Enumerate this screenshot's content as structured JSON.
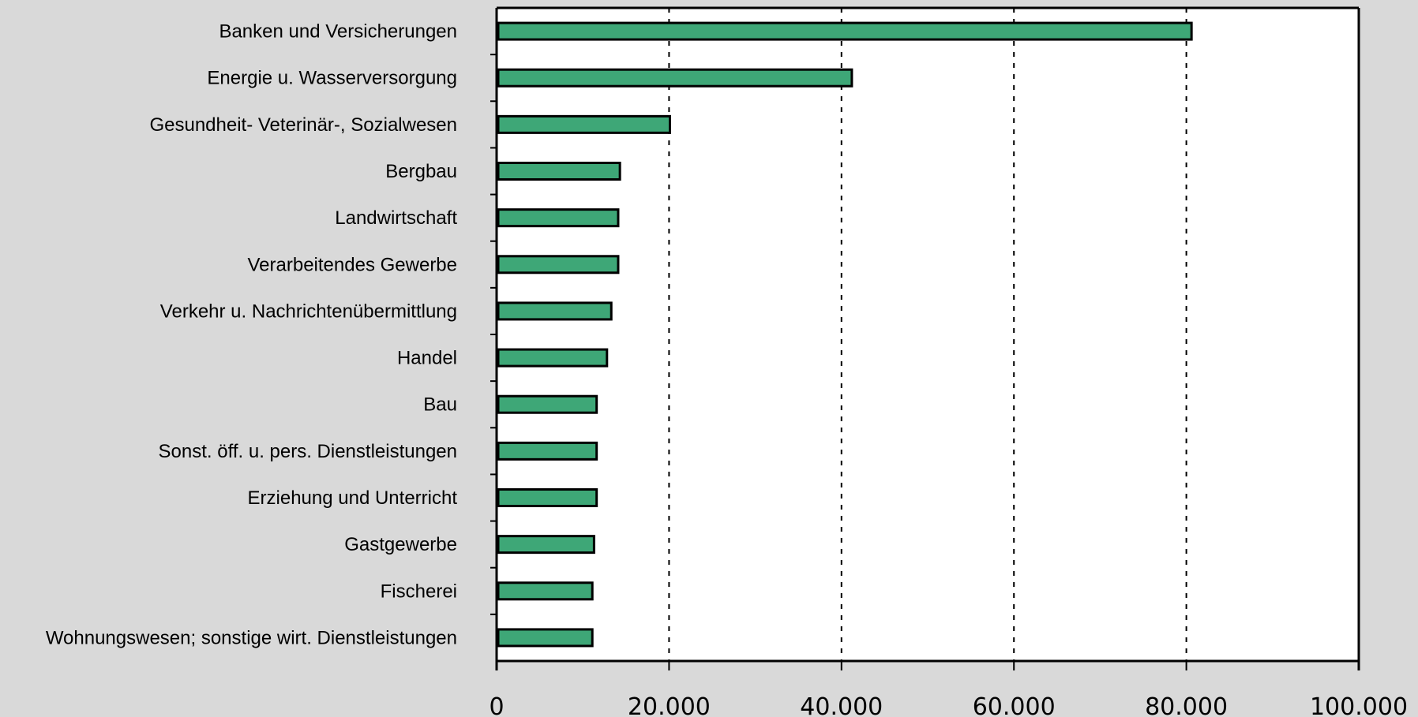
{
  "chart_data": {
    "type": "bar",
    "orientation": "horizontal",
    "categories": [
      "Banken und Versicherungen",
      "Energie u. Wasserversorgung",
      "Gesundheit- Veterinär-, Sozialwesen",
      "Bergbau",
      "Landwirtschaft",
      "Verarbeitendes Gewerbe",
      "Verkehr u. Nachrichtenübermittlung",
      "Handel",
      "Bau",
      "Sonst. öff. u. pers. Dienstleistungen",
      "Erziehung und Unterricht",
      "Gastgewerbe",
      "Fischerei",
      "Wohnungswesen; sonstige wirt. Dienstleistungen"
    ],
    "values": [
      80600,
      41200,
      20100,
      14300,
      14100,
      14100,
      13300,
      12800,
      11600,
      11600,
      11600,
      11300,
      11100,
      11100
    ],
    "xlim": [
      0,
      100000
    ],
    "xticks": [
      0,
      20000,
      40000,
      60000,
      80000,
      100000
    ],
    "xtick_labels": [
      "0",
      "20.000",
      "40.000",
      "60.000",
      "80.000",
      "100.000"
    ],
    "grid": "vertical dashed",
    "title": "",
    "xlabel": "",
    "ylabel": "",
    "bar_color": "#3ea777",
    "plot_background": "#ffffff",
    "page_background": "#d9d9d9"
  }
}
